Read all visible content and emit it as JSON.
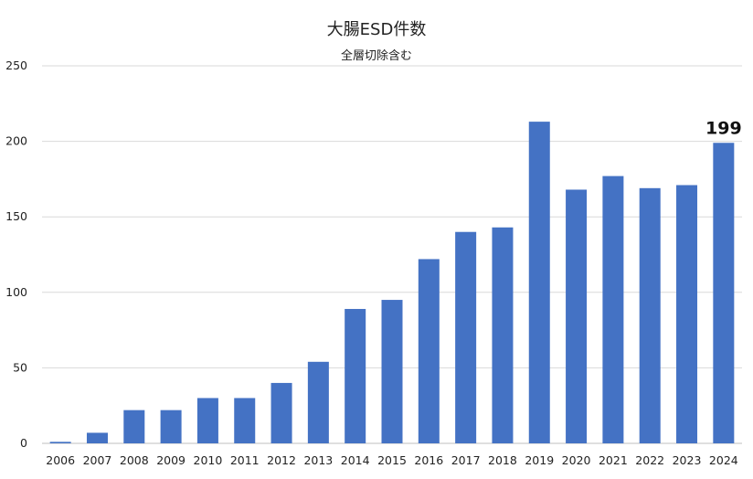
{
  "chart_data": {
    "type": "bar",
    "title": "大腸ESD件数",
    "subtitle": "全層切除含む",
    "xlabel": "",
    "ylabel": "",
    "categories": [
      "2006",
      "2007",
      "2008",
      "2009",
      "2010",
      "2011",
      "2012",
      "2013",
      "2014",
      "2015",
      "2016",
      "2017",
      "2018",
      "2019",
      "2020",
      "2021",
      "2022",
      "2023",
      "2024"
    ],
    "values": [
      1,
      7,
      22,
      22,
      30,
      30,
      40,
      54,
      89,
      95,
      122,
      140,
      143,
      213,
      168,
      177,
      169,
      171,
      199
    ],
    "ylim": [
      0,
      250
    ],
    "yticks": [
      0,
      50,
      100,
      150,
      200,
      250
    ],
    "grid": true,
    "legend": "none",
    "bar_color": "#4472C4",
    "grid_color": "#d9d9d9",
    "annotation": {
      "category": "2024",
      "text": "199"
    }
  }
}
